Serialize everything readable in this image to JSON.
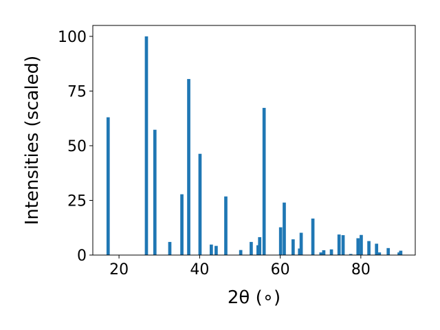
{
  "chart_data": {
    "type": "bar",
    "xlabel": "2θ (∘)",
    "ylabel": "Intensities (scaled)",
    "xlim": [
      13.5,
      93.5
    ],
    "ylim": [
      0,
      105
    ],
    "xticks": [
      20,
      40,
      60,
      80
    ],
    "yticks": [
      0,
      25,
      50,
      75,
      100
    ],
    "color": "#1f77b4",
    "grid": false,
    "bar_width": 0.8,
    "peaks": [
      {
        "x": 17.3,
        "y": 63
      },
      {
        "x": 26.8,
        "y": 100
      },
      {
        "x": 28.9,
        "y": 57.3
      },
      {
        "x": 32.6,
        "y": 6
      },
      {
        "x": 35.6,
        "y": 27.8
      },
      {
        "x": 37.3,
        "y": 80.5
      },
      {
        "x": 40.1,
        "y": 46.3
      },
      {
        "x": 42.9,
        "y": 4.8
      },
      {
        "x": 44.1,
        "y": 4.2
      },
      {
        "x": 46.5,
        "y": 26.8
      },
      {
        "x": 50.2,
        "y": 2.3
      },
      {
        "x": 52.8,
        "y": 6
      },
      {
        "x": 54.5,
        "y": 4.5
      },
      {
        "x": 54.9,
        "y": 8.2
      },
      {
        "x": 56.0,
        "y": 67.3
      },
      {
        "x": 60.1,
        "y": 12.7
      },
      {
        "x": 61.0,
        "y": 24.0
      },
      {
        "x": 63.2,
        "y": 7.2
      },
      {
        "x": 64.8,
        "y": 3
      },
      {
        "x": 65.2,
        "y": 10.2
      },
      {
        "x": 68.1,
        "y": 16.7
      },
      {
        "x": 70.1,
        "y": 1.2
      },
      {
        "x": 70.8,
        "y": 2.2
      },
      {
        "x": 72.7,
        "y": 2.6
      },
      {
        "x": 74.6,
        "y": 9.4
      },
      {
        "x": 75.6,
        "y": 9.1
      },
      {
        "x": 77.5,
        "y": 0.5
      },
      {
        "x": 79.3,
        "y": 7.7
      },
      {
        "x": 80.1,
        "y": 9.2
      },
      {
        "x": 82.0,
        "y": 6.4
      },
      {
        "x": 83.9,
        "y": 5.2
      },
      {
        "x": 84.6,
        "y": 1.2
      },
      {
        "x": 86.8,
        "y": 3.2
      },
      {
        "x": 89.5,
        "y": 1.2
      },
      {
        "x": 89.9,
        "y": 2
      }
    ]
  }
}
